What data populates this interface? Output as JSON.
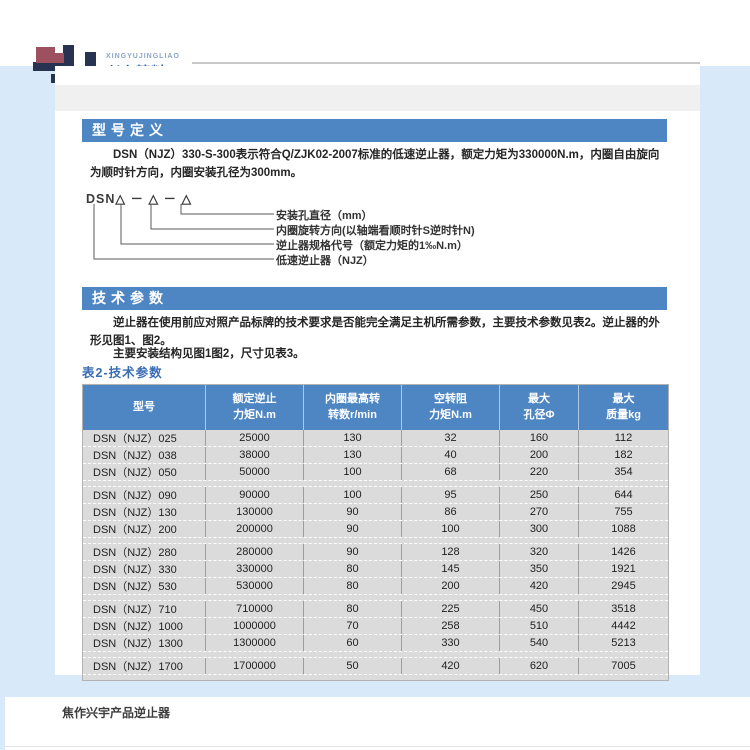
{
  "colors": {
    "page_bg": "#d8eafa",
    "bar_blue": "#4e86c4",
    "accent_blue": "#3a6db5",
    "table_body_bg": "#dbdbdb",
    "logo_navy": "#273350",
    "logo_red": "#9d505f"
  },
  "header": {
    "logo_subtext": "XINGYUJINGLIAO",
    "logo_text": "兴宇精料"
  },
  "model_definition": {
    "title": "型号定义",
    "description": "DSN（NJZ）330-S-300表示符合Q/ZJK02-2007标准的低速逆止器，额定力矩为330000N.m，内圈自由旋向为顺时针方向，内圈安装孔径为300mm。",
    "code": "DSN△ － △ － △",
    "labels": [
      "安装孔直径（mm）",
      "内圈旋转方向(以轴端看顺时针S逆时针N)",
      "逆止器规格代号（额定力矩的1‰N.m）",
      "低速逆止器（NJZ）"
    ]
  },
  "tech_params": {
    "title": "技术参数",
    "paragraph1": "逆止器在使用前应对照产品标牌的技术要求是否能完全满足主机所需参数，主要技术参数见表2。逆止器的外形见图1、图2。",
    "paragraph2": "主要安装结构见图1图2，尺寸见表3。",
    "table_caption": "表2-技术参数",
    "table": {
      "headers": [
        "型号",
        "额定逆止\n力矩N.m",
        "内圈最高转\n转数r/min",
        "空转阻\n力矩N.m",
        "最大\n孔径Φ",
        "最大\n质量kg"
      ],
      "groups": [
        [
          [
            "DSN（NJZ）025",
            "25000",
            "130",
            "32",
            "160",
            "112"
          ],
          [
            "DSN（NJZ）038",
            "38000",
            "130",
            "40",
            "200",
            "182"
          ],
          [
            "DSN（NJZ）050",
            "50000",
            "100",
            "68",
            "220",
            "354"
          ]
        ],
        [
          [
            "DSN（NJZ）090",
            "90000",
            "100",
            "95",
            "250",
            "644"
          ],
          [
            "DSN（NJZ）130",
            "130000",
            "90",
            "86",
            "270",
            "755"
          ],
          [
            "DSN（NJZ）200",
            "200000",
            "90",
            "100",
            "300",
            "1088"
          ]
        ],
        [
          [
            "DSN（NJZ）280",
            "280000",
            "90",
            "128",
            "320",
            "1426"
          ],
          [
            "DSN（NJZ）330",
            "330000",
            "80",
            "145",
            "350",
            "1921"
          ],
          [
            "DSN（NJZ）530",
            "530000",
            "80",
            "200",
            "420",
            "2945"
          ]
        ],
        [
          [
            "DSN（NJZ）710",
            "710000",
            "80",
            "225",
            "450",
            "3518"
          ],
          [
            "DSN（NJZ）1000",
            "1000000",
            "70",
            "258",
            "510",
            "4442"
          ],
          [
            "DSN（NJZ）1300",
            "1300000",
            "60",
            "330",
            "540",
            "5213"
          ]
        ],
        [
          [
            "DSN（NJZ）1700",
            "1700000",
            "50",
            "420",
            "620",
            "7005"
          ]
        ]
      ]
    }
  },
  "footer": {
    "text": "焦作兴宇产品逆止器"
  }
}
